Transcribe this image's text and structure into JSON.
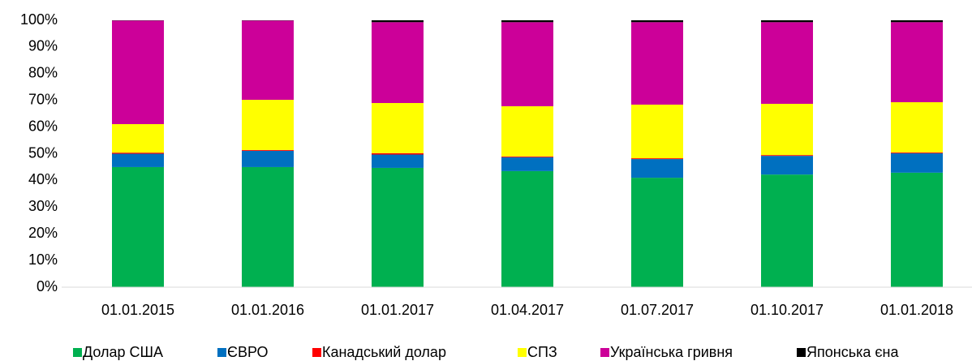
{
  "chart_data": {
    "type": "stacked_bar_100",
    "categories": [
      "01.01.2015",
      "01.01.2016",
      "01.01.2017",
      "01.04.2017",
      "01.07.2017",
      "01.10.2017",
      "01.01.2018"
    ],
    "series": [
      {
        "name": "Долар США",
        "color": "#00b050",
        "values": [
          45.0,
          45.0,
          44.7,
          43.5,
          41.0,
          42.2,
          42.9
        ]
      },
      {
        "name": "ЄВРО",
        "color": "#0070c0",
        "values": [
          5.0,
          6.1,
          5.0,
          5.2,
          7.0,
          7.0,
          7.3
        ]
      },
      {
        "name": "Канадський долар",
        "color": "#ff0000",
        "values": [
          0.4,
          0.3,
          0.5,
          0.3,
          0.3,
          0.3,
          0.3
        ]
      },
      {
        "name": "СПЗ",
        "color": "#ffff00",
        "values": [
          10.7,
          18.8,
          18.8,
          18.8,
          20.1,
          19.2,
          18.8
        ]
      },
      {
        "name": "Українська гривня",
        "color": "#cc0099",
        "values": [
          38.8,
          29.7,
          30.3,
          31.5,
          30.9,
          30.6,
          30.0
        ]
      },
      {
        "name": "Японська єна",
        "color": "#000000",
        "values": [
          0.1,
          0.1,
          0.7,
          0.7,
          0.7,
          0.7,
          0.7
        ]
      }
    ],
    "ylim": [
      0,
      100
    ],
    "yticks": [
      {
        "value": 0,
        "label": "0%"
      },
      {
        "value": 10,
        "label": "10%"
      },
      {
        "value": 20,
        "label": "20%"
      },
      {
        "value": 30,
        "label": "30%"
      },
      {
        "value": 40,
        "label": "40%"
      },
      {
        "value": 50,
        "label": "50%"
      },
      {
        "value": 60,
        "label": "60%"
      },
      {
        "value": 70,
        "label": "70%"
      },
      {
        "value": 80,
        "label": "80%"
      },
      {
        "value": 90,
        "label": "90%"
      },
      {
        "value": 100,
        "label": "100%"
      }
    ],
    "legend": "bottom"
  }
}
